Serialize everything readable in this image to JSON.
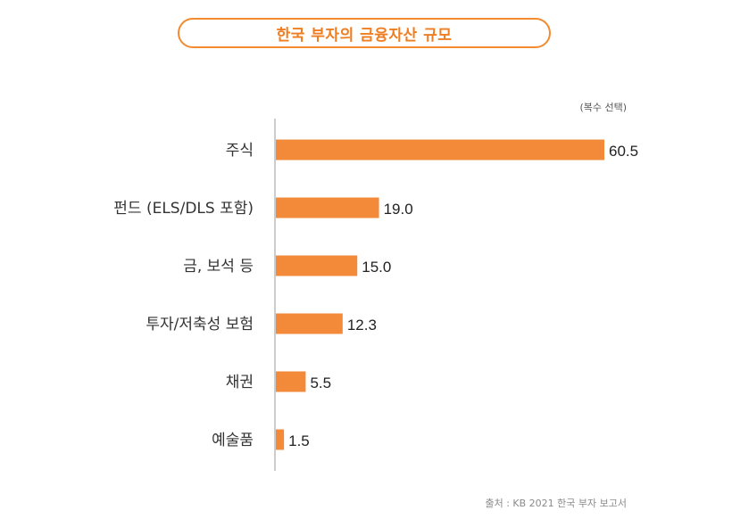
{
  "header": {
    "title": "한국 부자의 금융자산 규모",
    "note": "(복수 선택)"
  },
  "footer": {
    "source": "출처 : KB 2021 한국 부자 보고서"
  },
  "colors": {
    "accent": "#f28a30",
    "bar": "#f28a3a",
    "axis": "#cccccc",
    "title_text": "#ef7d22"
  },
  "chart_data": {
    "type": "bar",
    "orientation": "horizontal",
    "title": "한국 부자의 금융자산 규모",
    "categories": [
      "주식",
      "펀드 (ELS/DLS 포함)",
      "금, 보석 등",
      "투자/저축성 보험",
      "채권",
      "예술품"
    ],
    "values": [
      60.5,
      19.0,
      15.0,
      12.3,
      5.5,
      1.5
    ],
    "value_labels": [
      "60.5",
      "19.0",
      "15.0",
      "12.3",
      "5.5",
      "1.5"
    ],
    "xlim": [
      0,
      60.5
    ],
    "xlabel": "",
    "ylabel": "",
    "grid": false,
    "legend": "none"
  }
}
